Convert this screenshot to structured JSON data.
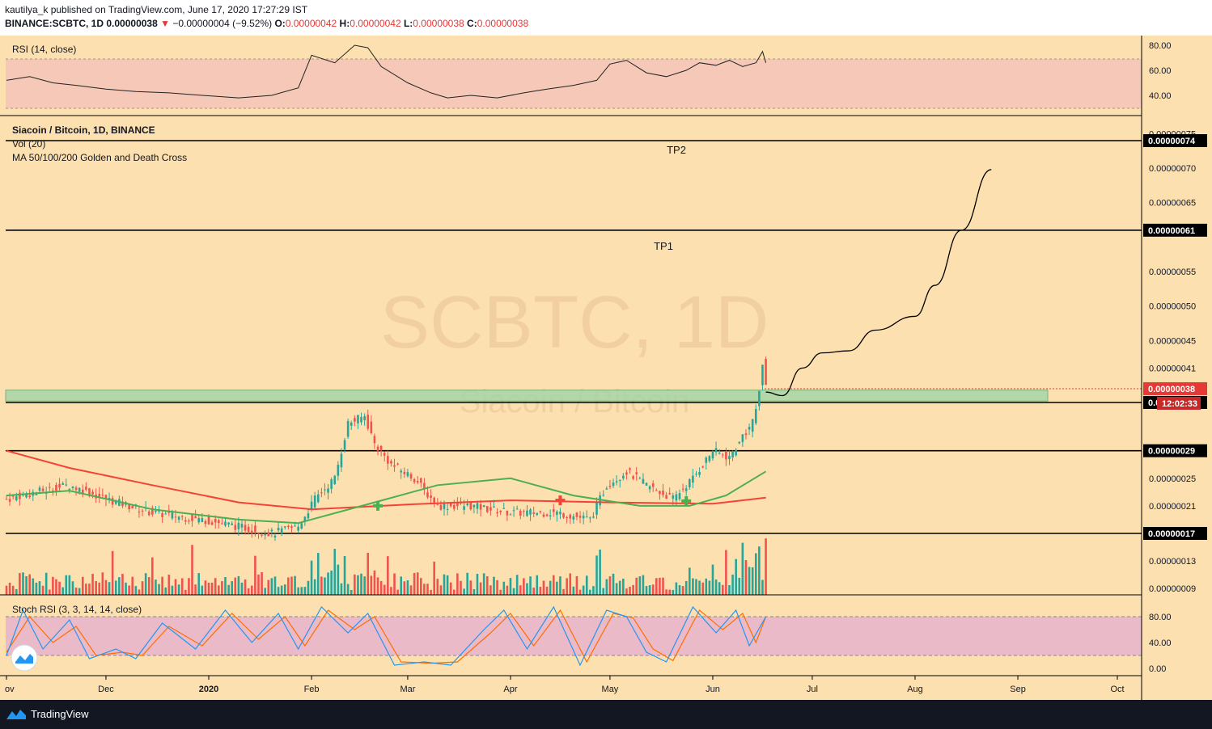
{
  "header": {
    "publisher": "kautilya_k published on TradingView.com, June 17, 2020 17:27:29 IST",
    "symbol": "BINANCE:SCBTC, 1D",
    "last": "0.00000038",
    "arrow": "▼",
    "change": "−0.00000004 (−9.52%)",
    "o_label": "O:",
    "o_val": "0.00000042",
    "h_label": "H:",
    "h_val": "0.00000042",
    "l_label": "L:",
    "l_val": "0.00000038",
    "c_label": "C:",
    "c_val": "0.00000038"
  },
  "watermark": {
    "main": "SCBTC, 1D",
    "sub": "Siacoin / Bitcoin"
  },
  "footer": {
    "brand": "TradingView"
  },
  "colors": {
    "background": "#fde0b0",
    "rsi_band": "#f5c8b8",
    "stoch_band": "#ebbac8",
    "up": "#26a69a",
    "down": "#ef5350",
    "ma_green": "#4caf50",
    "ma_red": "#f44336",
    "zone": "#a5d6a7",
    "stoch_k": "#2196f3",
    "stoch_d": "#ff6d00"
  },
  "chart_data": [
    {
      "type": "line",
      "title": "RSI (14, close)",
      "yticks": [
        "80.00",
        "60.00",
        "40.00"
      ],
      "ylim": [
        25,
        85
      ],
      "band": [
        30,
        70
      ],
      "series": [
        {
          "points": [
            [
              "2019-11-01",
              52
            ],
            [
              "2019-11-08",
              55
            ],
            [
              "2019-11-15",
              50
            ],
            [
              "2019-11-22",
              48
            ],
            [
              "2019-12-01",
              45
            ],
            [
              "2019-12-10",
              43
            ],
            [
              "2019-12-20",
              42
            ],
            [
              "2019-12-30",
              40
            ],
            [
              "2020-01-10",
              38
            ],
            [
              "2020-01-20",
              40
            ],
            [
              "2020-01-28",
              46
            ],
            [
              "2020-02-01",
              72
            ],
            [
              "2020-02-08",
              66
            ],
            [
              "2020-02-14",
              80
            ],
            [
              "2020-02-18",
              78
            ],
            [
              "2020-02-22",
              63
            ],
            [
              "2020-03-01",
              50
            ],
            [
              "2020-03-08",
              42
            ],
            [
              "2020-03-13",
              38
            ],
            [
              "2020-03-20",
              40
            ],
            [
              "2020-03-28",
              38
            ],
            [
              "2020-04-05",
              42
            ],
            [
              "2020-04-12",
              45
            ],
            [
              "2020-04-20",
              48
            ],
            [
              "2020-04-27",
              52
            ],
            [
              "2020-05-01",
              65
            ],
            [
              "2020-05-06",
              68
            ],
            [
              "2020-05-12",
              58
            ],
            [
              "2020-05-18",
              55
            ],
            [
              "2020-05-24",
              60
            ],
            [
              "2020-05-28",
              66
            ],
            [
              "2020-06-02",
              64
            ],
            [
              "2020-06-06",
              68
            ],
            [
              "2020-06-10",
              63
            ],
            [
              "2020-06-14",
              66
            ],
            [
              "2020-06-16",
              75
            ],
            [
              "2020-06-17",
              66
            ]
          ]
        }
      ]
    },
    {
      "type": "candlestick",
      "title": "Siacoin / Bitcoin, 1D, BINANCE",
      "indicators": [
        "Vol (20)",
        "MA 50/100/200 Golden and Death Cross"
      ],
      "ylim": [
        8e-08,
        7.6e-08
      ],
      "yticks": [
        "0.00000075",
        "0.00000070",
        "0.00000065",
        "0.00000055",
        "0.00000050",
        "0.00000045",
        "0.00000041",
        "0.00000025",
        "0.00000021",
        "0.00000013",
        "0.00000009"
      ],
      "levels": [
        {
          "value": 7.4e-07,
          "label": "0.00000074",
          "text": "TP2"
        },
        {
          "value": 6.1e-07,
          "label": "0.00000061",
          "text": "TP1"
        },
        {
          "value": 3.6e-07,
          "label": "0.00000036",
          "text": ""
        },
        {
          "value": 2.9e-07,
          "label": "0.00000029",
          "text": ""
        },
        {
          "value": 1.7e-07,
          "label": "0.00000017",
          "text": ""
        }
      ],
      "last_price": {
        "value": 3.8e-07,
        "label": "0.00000038",
        "countdown": "12:02:33"
      },
      "zone": {
        "from": 3.62e-07,
        "to": 3.78e-07
      },
      "close_path": [
        [
          "2019-11-01",
          2.2e-07
        ],
        [
          "2019-11-10",
          2.3e-07
        ],
        [
          "2019-11-20",
          2.4e-07
        ],
        [
          "2019-12-01",
          2.2e-07
        ],
        [
          "2019-12-15",
          2e-07
        ],
        [
          "2019-12-30",
          1.9e-07
        ],
        [
          "2020-01-10",
          1.8e-07
        ],
        [
          "2020-01-20",
          1.7e-07
        ],
        [
          "2020-01-28",
          1.8e-07
        ],
        [
          "2020-02-02",
          2.2e-07
        ],
        [
          "2020-02-08",
          2.5e-07
        ],
        [
          "2020-02-12",
          3.3e-07
        ],
        [
          "2020-02-17",
          3.4e-07
        ],
        [
          "2020-02-20",
          3e-07
        ],
        [
          "2020-02-25",
          2.7e-07
        ],
        [
          "2020-03-03",
          2.5e-07
        ],
        [
          "2020-03-10",
          2.1e-07
        ],
        [
          "2020-03-20",
          2.1e-07
        ],
        [
          "2020-04-01",
          2e-07
        ],
        [
          "2020-04-15",
          2e-07
        ],
        [
          "2020-04-25",
          1.9e-07
        ],
        [
          "2020-04-30",
          2.4e-07
        ],
        [
          "2020-05-06",
          2.6e-07
        ],
        [
          "2020-05-12",
          2.4e-07
        ],
        [
          "2020-05-20",
          2.2e-07
        ],
        [
          "2020-05-26",
          2.5e-07
        ],
        [
          "2020-06-01",
          2.9e-07
        ],
        [
          "2020-06-06",
          2.8e-07
        ],
        [
          "2020-06-10",
          3.1e-07
        ],
        [
          "2020-06-13",
          3.3e-07
        ],
        [
          "2020-06-15",
          3.8e-07
        ],
        [
          "2020-06-16",
          4.2e-07
        ],
        [
          "2020-06-17",
          3.8e-07
        ]
      ],
      "ma_green": [
        [
          "2019-11-01",
          2.25e-07
        ],
        [
          "2019-11-20",
          2.32e-07
        ],
        [
          "2019-12-15",
          2.05e-07
        ],
        [
          "2020-01-10",
          1.9e-07
        ],
        [
          "2020-01-28",
          1.85e-07
        ],
        [
          "2020-02-20",
          2.15e-07
        ],
        [
          "2020-03-10",
          2.4e-07
        ],
        [
          "2020-04-01",
          2.5e-07
        ],
        [
          "2020-04-20",
          2.25e-07
        ],
        [
          "2020-05-10",
          2.1e-07
        ],
        [
          "2020-05-25",
          2.1e-07
        ],
        [
          "2020-06-05",
          2.25e-07
        ],
        [
          "2020-06-17",
          2.6e-07
        ]
      ],
      "ma_red": [
        [
          "2019-11-01",
          2.9e-07
        ],
        [
          "2019-11-20",
          2.65e-07
        ],
        [
          "2019-12-15",
          2.4e-07
        ],
        [
          "2020-01-10",
          2.15e-07
        ],
        [
          "2020-02-01",
          2.05e-07
        ],
        [
          "2020-03-01",
          2.12e-07
        ],
        [
          "2020-04-01",
          2.18e-07
        ],
        [
          "2020-05-01",
          2.15e-07
        ],
        [
          "2020-06-01",
          2.13e-07
        ],
        [
          "2020-06-17",
          2.22e-07
        ]
      ],
      "crosses": [
        {
          "date": "2020-02-21",
          "value": 2.1e-07,
          "kind": "golden"
        },
        {
          "date": "2020-04-16",
          "value": 2.18e-07,
          "kind": "death"
        },
        {
          "date": "2020-05-24",
          "value": 2.17e-07,
          "kind": "golden"
        }
      ],
      "projection": [
        [
          "2020-06-17",
          3.75e-07
        ],
        [
          "2020-06-22",
          3.7e-07
        ],
        [
          "2020-06-28",
          4.1e-07
        ],
        [
          "2020-07-04",
          4.32e-07
        ],
        [
          "2020-07-12",
          4.35e-07
        ],
        [
          "2020-07-20",
          4.65e-07
        ],
        [
          "2020-08-01",
          4.85e-07
        ],
        [
          "2020-08-07",
          5.3e-07
        ],
        [
          "2020-08-15",
          6.1e-07
        ],
        [
          "2020-08-24",
          6.98e-07
        ]
      ]
    },
    {
      "type": "line",
      "title": "Stoch RSI (3, 3, 14, 14, close)",
      "yticks": [
        "80.00",
        "40.00",
        "0.00"
      ],
      "ylim": [
        -10,
        105
      ],
      "band": [
        20,
        80
      ],
      "series": [
        {
          "color": "#2196f3",
          "points": [
            [
              "2019-11-01",
              20
            ],
            [
              "2019-11-06",
              90
            ],
            [
              "2019-11-12",
              30
            ],
            [
              "2019-11-20",
              75
            ],
            [
              "2019-11-26",
              15
            ],
            [
              "2019-12-04",
              30
            ],
            [
              "2019-12-10",
              15
            ],
            [
              "2019-12-18",
              70
            ],
            [
              "2019-12-28",
              30
            ],
            [
              "2020-01-06",
              90
            ],
            [
              "2020-01-14",
              40
            ],
            [
              "2020-01-22",
              85
            ],
            [
              "2020-01-28",
              30
            ],
            [
              "2020-02-04",
              95
            ],
            [
              "2020-02-12",
              55
            ],
            [
              "2020-02-18",
              85
            ],
            [
              "2020-02-26",
              5
            ],
            [
              "2020-03-06",
              10
            ],
            [
              "2020-03-14",
              5
            ],
            [
              "2020-03-24",
              60
            ],
            [
              "2020-03-30",
              90
            ],
            [
              "2020-04-06",
              30
            ],
            [
              "2020-04-14",
              95
            ],
            [
              "2020-04-22",
              5
            ],
            [
              "2020-04-30",
              90
            ],
            [
              "2020-05-06",
              80
            ],
            [
              "2020-05-12",
              25
            ],
            [
              "2020-05-18",
              10
            ],
            [
              "2020-05-26",
              95
            ],
            [
              "2020-06-02",
              55
            ],
            [
              "2020-06-08",
              90
            ],
            [
              "2020-06-12",
              35
            ],
            [
              "2020-06-17",
              80
            ]
          ]
        },
        {
          "color": "#ff6d00",
          "points": [
            [
              "2019-11-01",
              25
            ],
            [
              "2019-11-08",
              80
            ],
            [
              "2019-11-15",
              40
            ],
            [
              "2019-11-22",
              65
            ],
            [
              "2019-11-28",
              20
            ],
            [
              "2019-12-06",
              25
            ],
            [
              "2019-12-12",
              20
            ],
            [
              "2019-12-20",
              65
            ],
            [
              "2019-12-30",
              35
            ],
            [
              "2020-01-08",
              85
            ],
            [
              "2020-01-16",
              45
            ],
            [
              "2020-01-24",
              80
            ],
            [
              "2020-01-30",
              35
            ],
            [
              "2020-02-06",
              90
            ],
            [
              "2020-02-14",
              60
            ],
            [
              "2020-02-20",
              80
            ],
            [
              "2020-02-28",
              10
            ],
            [
              "2020-03-08",
              8
            ],
            [
              "2020-03-16",
              10
            ],
            [
              "2020-03-26",
              55
            ],
            [
              "2020-04-01",
              85
            ],
            [
              "2020-04-08",
              35
            ],
            [
              "2020-04-16",
              90
            ],
            [
              "2020-04-24",
              10
            ],
            [
              "2020-05-02",
              85
            ],
            [
              "2020-05-08",
              78
            ],
            [
              "2020-05-14",
              30
            ],
            [
              "2020-05-20",
              12
            ],
            [
              "2020-05-28",
              90
            ],
            [
              "2020-06-04",
              60
            ],
            [
              "2020-06-10",
              85
            ],
            [
              "2020-06-14",
              40
            ],
            [
              "2020-06-17",
              80
            ]
          ]
        }
      ]
    }
  ],
  "x_axis": [
    "ov",
    "Dec",
    "2020",
    "Feb",
    "Mar",
    "Apr",
    "May",
    "Jun",
    "Jul",
    "Aug",
    "Sep",
    "Oct"
  ]
}
